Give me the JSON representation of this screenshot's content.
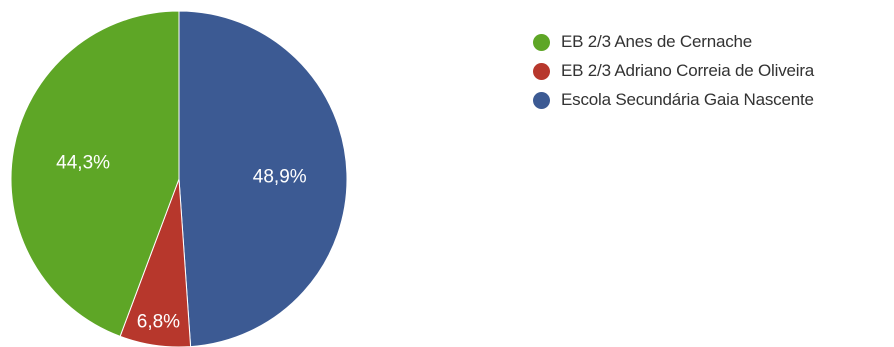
{
  "chart_data": {
    "type": "pie",
    "categories": [
      "EB 2/3 Anes de Cernache",
      "EB 2/3 Adriano Correia de Oliveira",
      "Escola Secundária Gaia Nascente"
    ],
    "values": [
      44.3,
      6.8,
      48.9
    ],
    "data_labels": [
      "44,3%",
      "6,8%",
      "48,9%"
    ],
    "colors": [
      "#5ea626",
      "#b7372c",
      "#3c5a93"
    ],
    "legend_position": "right"
  },
  "legend": {
    "items": [
      {
        "label": "EB 2/3 Anes de Cernache",
        "color": "#5ea626"
      },
      {
        "label": "EB 2/3 Adriano Correia de Oliveira",
        "color": "#b7372c"
      },
      {
        "label": "Escola Secundária Gaia Nascente",
        "color": "#3c5a93"
      }
    ]
  }
}
